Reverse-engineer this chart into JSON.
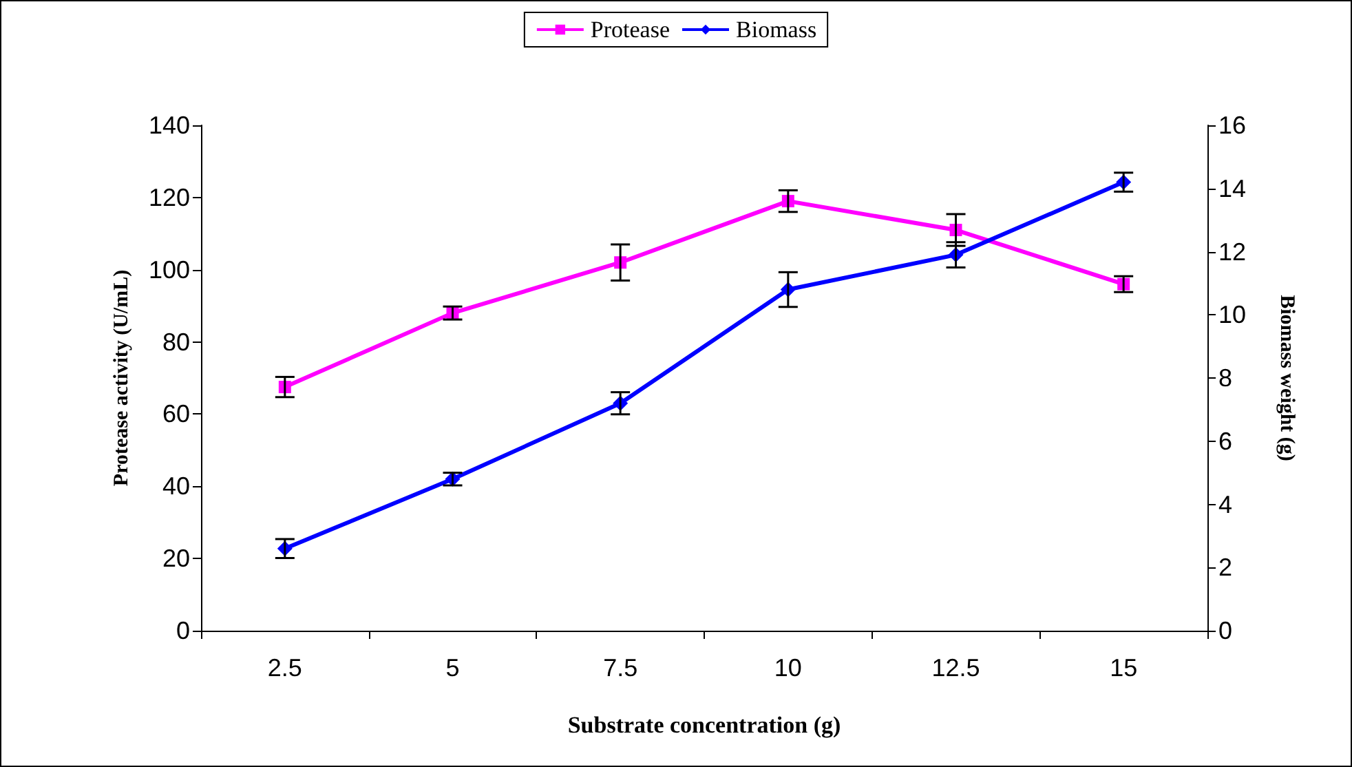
{
  "chart_data": {
    "type": "line",
    "xlabel": "Substrate concentration (g)",
    "ylabel": "Protease activity (U/mL)",
    "y2label": "Biomass weight (g)",
    "categories": [
      "2.5",
      "5",
      "7.5",
      "10",
      "12.5",
      "15"
    ],
    "series": [
      {
        "name": "Protease",
        "color": "#ff00ff",
        "marker": "square",
        "values": [
          67.5,
          88,
          102,
          119,
          111,
          96
        ],
        "errors": [
          2.8,
          1.8,
          5,
          3,
          4.4,
          2.2
        ]
      },
      {
        "name": "Biomass",
        "color": "#0000ff",
        "marker": "diamond",
        "axis": "y2",
        "values": [
          2.6,
          4.8,
          7.2,
          10.8,
          11.9,
          14.2
        ],
        "errors": [
          0.3,
          0.2,
          0.35,
          0.55,
          0.4,
          0.3
        ]
      }
    ],
    "ylim": [
      0,
      140
    ],
    "yticks": [
      0,
      20,
      40,
      60,
      80,
      100,
      120,
      140
    ],
    "y2lim": [
      0,
      16
    ],
    "y2ticks": [
      0,
      2,
      4,
      6,
      8,
      10,
      12,
      14,
      16
    ],
    "grid": false,
    "legend": "top",
    "line_style": "solid"
  }
}
